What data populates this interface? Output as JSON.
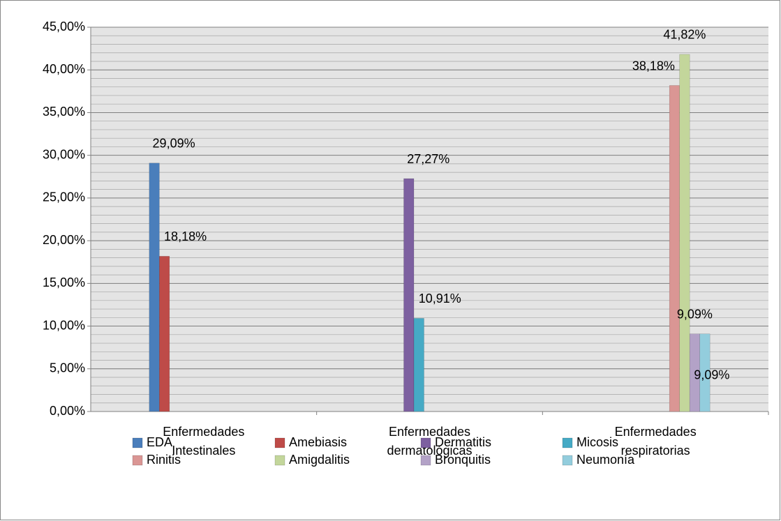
{
  "chart_data": {
    "type": "bar",
    "categories": [
      "Enfermedades Intestinales",
      "Enfermedades dermatológicas",
      "Enfermedades respiratorias"
    ],
    "series": [
      {
        "name": "EDA",
        "color": "#4a7ebb",
        "values": [
          29.09,
          null,
          null
        ],
        "value_labels": [
          "29,09%",
          null,
          null
        ]
      },
      {
        "name": "Amebiasis",
        "color": "#be4b48",
        "values": [
          18.18,
          null,
          null
        ],
        "value_labels": [
          "18,18%",
          null,
          null
        ]
      },
      {
        "name": "Dermatitis",
        "color": "#7d60a0",
        "values": [
          null,
          27.27,
          null
        ],
        "value_labels": [
          null,
          "27,27%",
          null
        ]
      },
      {
        "name": "Micosis",
        "color": "#46aac5",
        "values": [
          null,
          10.91,
          null
        ],
        "value_labels": [
          null,
          "10,91%",
          null
        ]
      },
      {
        "name": "Rinitis",
        "color": "#da9694",
        "values": [
          null,
          null,
          38.18
        ],
        "value_labels": [
          null,
          null,
          "38,18%"
        ]
      },
      {
        "name": "Amigdalitis",
        "color": "#c3d69b",
        "values": [
          null,
          null,
          41.82
        ],
        "value_labels": [
          null,
          null,
          "41,82%"
        ]
      },
      {
        "name": "Bronquitis",
        "color": "#b3a2c7",
        "values": [
          null,
          null,
          9.09
        ],
        "value_labels": [
          null,
          null,
          "9,09%"
        ]
      },
      {
        "name": "Neumonía",
        "color": "#93cddd",
        "values": [
          null,
          null,
          9.09
        ],
        "value_labels": [
          null,
          null,
          "9,09%"
        ]
      }
    ],
    "ylim": [
      0,
      45
    ],
    "yticks": [
      {
        "value": 0,
        "label": "0,00%"
      },
      {
        "value": 5,
        "label": "5,00%"
      },
      {
        "value": 10,
        "label": "10,00%"
      },
      {
        "value": 15,
        "label": "15,00%"
      },
      {
        "value": 20,
        "label": "20,00%"
      },
      {
        "value": 25,
        "label": "25,00%"
      },
      {
        "value": 30,
        "label": "30,00%"
      },
      {
        "value": 35,
        "label": "35,00%"
      },
      {
        "value": 40,
        "label": "40,00%"
      },
      {
        "value": 45,
        "label": "45,00%"
      }
    ],
    "grid": true,
    "legend": "bottom"
  }
}
